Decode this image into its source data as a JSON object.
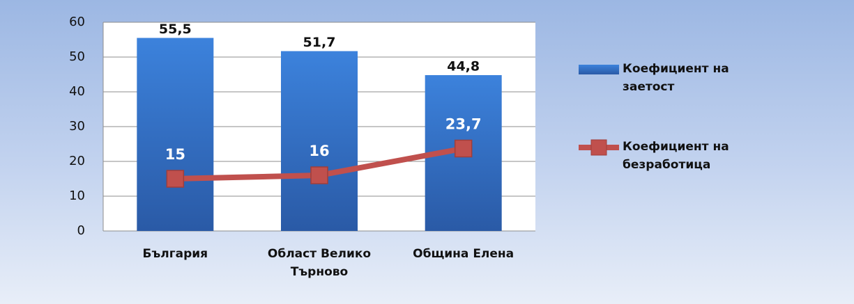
{
  "chart_data": {
    "type": "bar",
    "categories": [
      "България",
      "Област Велико Търново",
      "Община Елена"
    ],
    "series": [
      {
        "name": "Коефициент на заетост",
        "type": "bar",
        "color": "#3572c6",
        "values": [
          55.5,
          51.7,
          44.8
        ],
        "value_labels": [
          "55,5",
          "51,7",
          "44,8"
        ]
      },
      {
        "name": "Коефициент на безработица",
        "type": "line",
        "color": "#c0504d",
        "values": [
          15,
          16,
          23.7
        ],
        "value_labels": [
          "15",
          "16",
          "23,7"
        ]
      }
    ],
    "ylim": [
      0,
      60
    ],
    "yticks": [
      0,
      10,
      20,
      30,
      40,
      50,
      60
    ],
    "grid": true,
    "legend": "right"
  }
}
